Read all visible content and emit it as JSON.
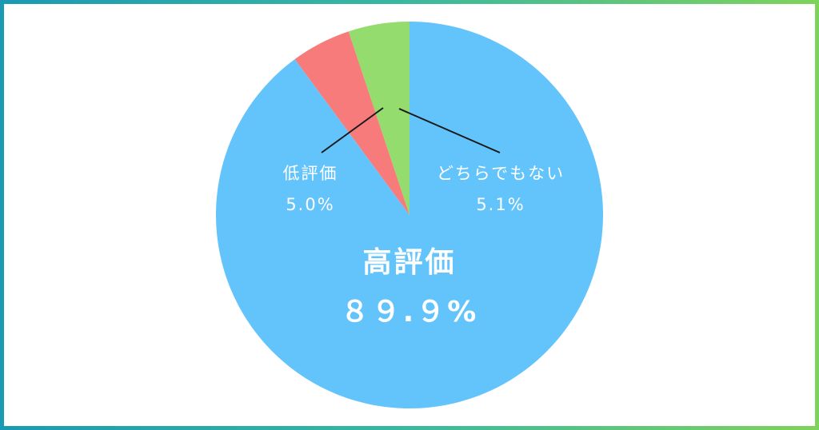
{
  "chart_data": {
    "type": "pie",
    "slices": [
      {
        "label": "高評価",
        "value": 89.9,
        "display": "８９.９%",
        "color": "#63c4fc"
      },
      {
        "label": "低評価",
        "value": 5.0,
        "display": "5.0%",
        "color": "#f77b7b"
      },
      {
        "label": "どちらでもない",
        "value": 5.1,
        "display": "5.1%",
        "color": "#95dc6f"
      }
    ],
    "start": "top",
    "direction": "counterclockwise"
  },
  "colors": {
    "frame_left": "#1a9ab3",
    "frame_right": "#7fd35a",
    "label_text": "#ffffff",
    "leader_line": "#1a1a1a"
  }
}
